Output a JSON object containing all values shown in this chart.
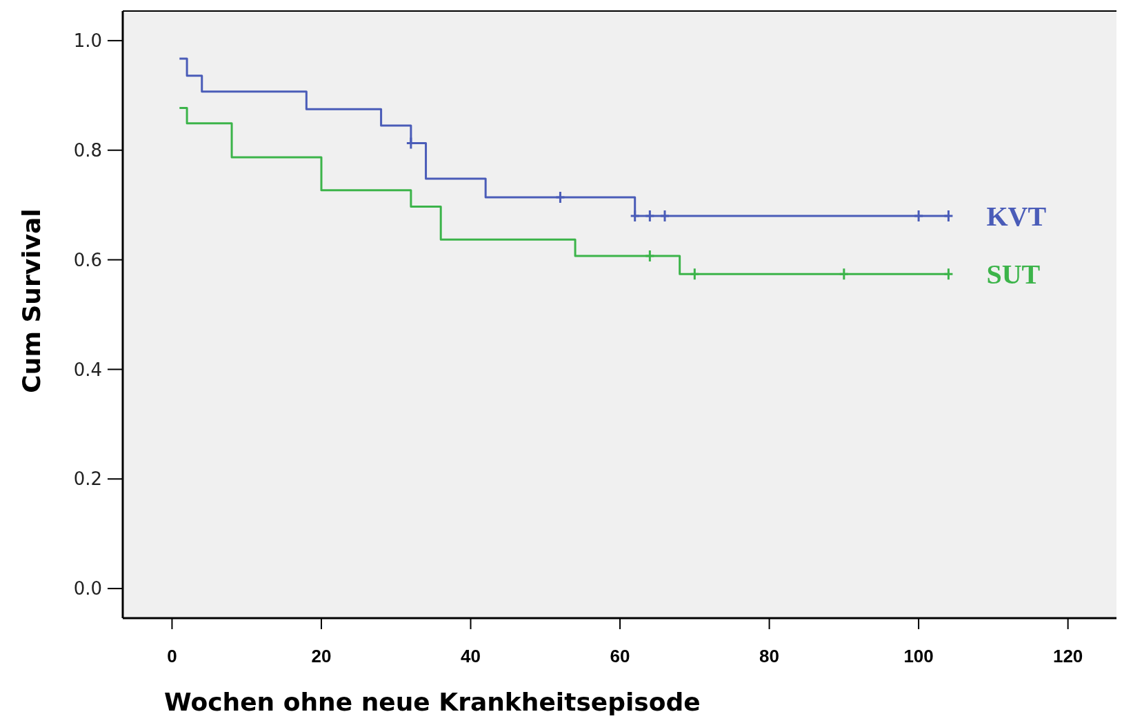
{
  "chart_data": {
    "type": "step",
    "xlabel": "Wochen ohne neue Krankheitsepisode",
    "ylabel": "Cum Survival",
    "xlim": [
      -6.6,
      126.5
    ],
    "ylim": [
      -0.054,
      1.054
    ],
    "xticks": [
      0,
      20,
      40,
      60,
      80,
      100,
      120
    ],
    "yticks": [
      {
        "value": 0,
        "label": "0.0"
      },
      {
        "value": 0.2,
        "label": "0.2"
      },
      {
        "value": 0.4,
        "label": "0.4"
      },
      {
        "value": 0.6,
        "label": "0.6"
      },
      {
        "value": 0.8,
        "label": "0.8"
      },
      {
        "value": 1,
        "label": "1.0"
      }
    ],
    "grid": false,
    "line_style": "solid",
    "series": [
      {
        "name": "KVT",
        "color": "#4a5cb8",
        "x": [
          1,
          2,
          4,
          18,
          28,
          32,
          34,
          42,
          62,
          104
        ],
        "values": [
          0.967,
          0.936,
          0.907,
          0.875,
          0.845,
          0.813,
          0.748,
          0.714,
          0.68,
          0.68
        ]
      },
      {
        "name": "SUT",
        "color": "#3cb44a",
        "x": [
          1,
          2,
          8,
          20,
          32,
          36,
          54,
          68,
          104
        ],
        "values": [
          0.877,
          0.849,
          0.787,
          0.727,
          0.697,
          0.637,
          0.607,
          0.574,
          0.574
        ]
      },
      {
        "type": "scatter",
        "marker": "cross",
        "color": "#4a5cb8",
        "x": [
          32,
          52,
          62,
          64,
          66,
          100,
          104
        ],
        "values": [
          0.813,
          0.714,
          0.68,
          0.68,
          0.68,
          0.68,
          0.68
        ]
      },
      {
        "type": "scatter",
        "marker": "cross",
        "color": "#3cb44a",
        "x": [
          64,
          70,
          90,
          104
        ],
        "values": [
          0.607,
          0.574,
          0.574,
          0.574
        ]
      }
    ]
  }
}
